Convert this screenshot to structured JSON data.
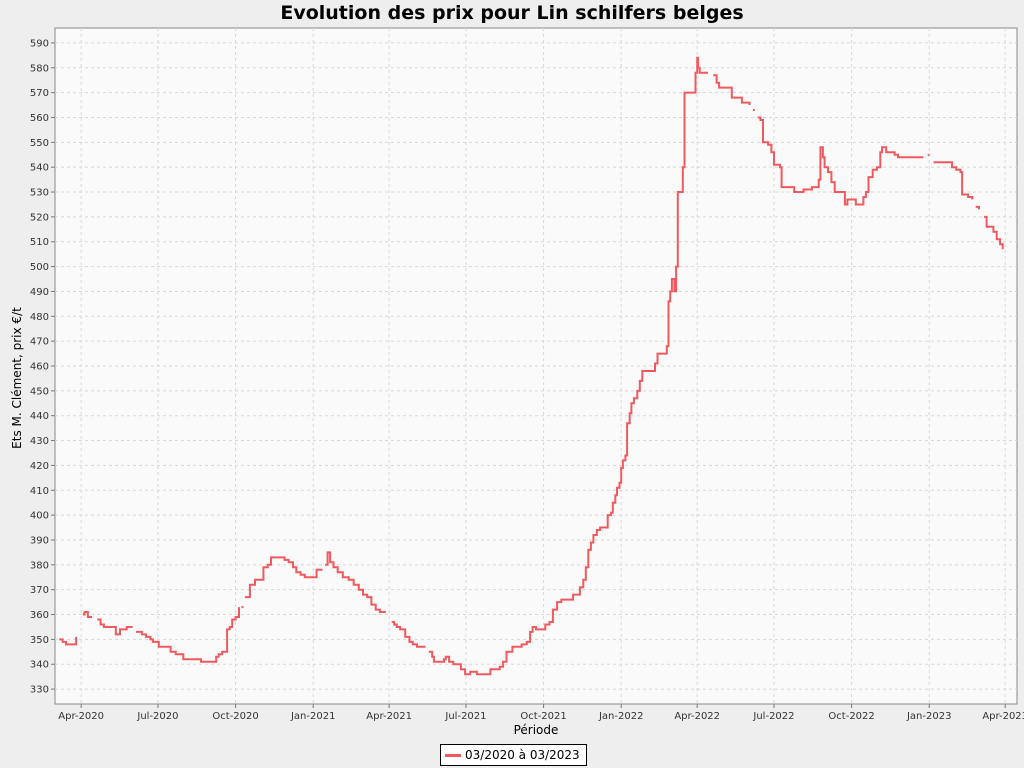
{
  "chart_data": {
    "type": "line",
    "title": "Evolution des prix pour Lin schilfers belges",
    "xlabel": "Période",
    "ylabel": "Ets M. Clément, prix €/t",
    "ylim": [
      324,
      596
    ],
    "yticks": [
      330,
      340,
      350,
      360,
      370,
      380,
      390,
      400,
      410,
      420,
      430,
      440,
      450,
      460,
      470,
      480,
      490,
      500,
      510,
      520,
      530,
      540,
      550,
      560,
      570,
      580,
      590
    ],
    "xlim": [
      "2020-03-01",
      "2023-04-15"
    ],
    "xticks": [
      {
        "date": "2020-04-01",
        "label": "Apr-2020"
      },
      {
        "date": "2020-07-01",
        "label": "Jul-2020"
      },
      {
        "date": "2020-10-01",
        "label": "Oct-2020"
      },
      {
        "date": "2021-01-01",
        "label": "Jan-2021"
      },
      {
        "date": "2021-04-01",
        "label": "Apr-2021"
      },
      {
        "date": "2021-07-01",
        "label": "Jul-2021"
      },
      {
        "date": "2021-10-01",
        "label": "Oct-2021"
      },
      {
        "date": "2022-01-01",
        "label": "Jan-2022"
      },
      {
        "date": "2022-04-01",
        "label": "Apr-2022"
      },
      {
        "date": "2022-07-01",
        "label": "Jul-2022"
      },
      {
        "date": "2022-10-01",
        "label": "Oct-2022"
      },
      {
        "date": "2023-01-01",
        "label": "Jan-2023"
      },
      {
        "date": "2023-04-01",
        "label": "Apr-2023"
      }
    ],
    "grid": true,
    "legend_placement": "bottom",
    "series": [
      {
        "name": "03/2020 à 03/2023",
        "color": "#f05a5f",
        "segments": [
          [
            [
              "2020-03-06",
              350
            ],
            [
              "2020-03-10",
              349
            ],
            [
              "2020-03-14",
              348
            ],
            [
              "2020-03-22",
              348
            ],
            [
              "2020-03-26",
              351
            ]
          ],
          [
            [
              "2020-04-03",
              360
            ],
            [
              "2020-04-05",
              361
            ],
            [
              "2020-04-09",
              359
            ],
            [
              "2020-04-14",
              359
            ]
          ],
          [
            [
              "2020-04-20",
              358
            ],
            [
              "2020-04-24",
              356
            ],
            [
              "2020-04-28",
              355
            ],
            [
              "2020-05-08",
              355
            ],
            [
              "2020-05-12",
              352
            ],
            [
              "2020-05-15",
              352
            ],
            [
              "2020-05-17",
              354
            ],
            [
              "2020-05-22",
              354
            ],
            [
              "2020-05-25",
              355
            ],
            [
              "2020-06-01",
              355
            ]
          ],
          [
            [
              "2020-06-05",
              353
            ],
            [
              "2020-06-12",
              352
            ],
            [
              "2020-06-17",
              351
            ],
            [
              "2020-06-22",
              350
            ],
            [
              "2020-06-25",
              349
            ],
            [
              "2020-06-30",
              349
            ],
            [
              "2020-07-02",
              347
            ],
            [
              "2020-07-10",
              347
            ],
            [
              "2020-07-16",
              345
            ],
            [
              "2020-07-22",
              344
            ],
            [
              "2020-07-28",
              344
            ],
            [
              "2020-07-31",
              342
            ],
            [
              "2020-08-10",
              342
            ],
            [
              "2020-08-17",
              342
            ],
            [
              "2020-08-21",
              341
            ],
            [
              "2020-09-04",
              341
            ],
            [
              "2020-09-08",
              343
            ],
            [
              "2020-09-11",
              344
            ],
            [
              "2020-09-15",
              345
            ],
            [
              "2020-09-19",
              345
            ],
            [
              "2020-09-21",
              354
            ],
            [
              "2020-09-24",
              355
            ],
            [
              "2020-09-27",
              358
            ],
            [
              "2020-10-01",
              359
            ],
            [
              "2020-10-05",
              363
            ]
          ],
          [
            [
              "2020-10-08",
              363
            ]
          ],
          [
            [
              "2020-10-12",
              367
            ],
            [
              "2020-10-16",
              367
            ],
            [
              "2020-10-18",
              372
            ],
            [
              "2020-10-24",
              374
            ],
            [
              "2020-10-31",
              374
            ],
            [
              "2020-11-03",
              379
            ],
            [
              "2020-11-08",
              380
            ],
            [
              "2020-11-12",
              383
            ],
            [
              "2020-11-23",
              383
            ],
            [
              "2020-11-28",
              382
            ],
            [
              "2020-12-03",
              381
            ],
            [
              "2020-12-08",
              379
            ],
            [
              "2020-12-12",
              377
            ],
            [
              "2020-12-17",
              376
            ],
            [
              "2020-12-22",
              375
            ],
            [
              "2021-01-02",
              375
            ],
            [
              "2021-01-05",
              378
            ],
            [
              "2021-01-12",
              378
            ]
          ],
          [
            [
              "2021-01-15",
              380
            ],
            [
              "2021-01-18",
              385
            ],
            [
              "2021-01-21",
              381
            ],
            [
              "2021-01-25",
              379
            ],
            [
              "2021-01-30",
              377
            ],
            [
              "2021-02-05",
              375
            ],
            [
              "2021-02-12",
              374
            ],
            [
              "2021-02-18",
              372
            ],
            [
              "2021-02-24",
              370
            ],
            [
              "2021-03-01",
              368
            ],
            [
              "2021-03-06",
              367
            ],
            [
              "2021-03-11",
              364
            ],
            [
              "2021-03-16",
              362
            ],
            [
              "2021-03-21",
              361
            ],
            [
              "2021-03-28",
              361
            ]
          ],
          [
            [
              "2021-04-04",
              357
            ],
            [
              "2021-04-07",
              356
            ],
            [
              "2021-04-10",
              355
            ],
            [
              "2021-04-14",
              354
            ],
            [
              "2021-04-20",
              351
            ],
            [
              "2021-04-25",
              349
            ],
            [
              "2021-04-29",
              348
            ],
            [
              "2021-05-04",
              347
            ],
            [
              "2021-05-14",
              347
            ]
          ],
          [
            [
              "2021-05-18",
              345
            ],
            [
              "2021-05-22",
              343
            ],
            [
              "2021-05-24",
              341
            ],
            [
              "2021-06-01",
              341
            ],
            [
              "2021-06-05",
              342
            ],
            [
              "2021-06-07",
              343
            ],
            [
              "2021-06-11",
              341
            ],
            [
              "2021-06-16",
              340
            ],
            [
              "2021-06-22",
              340
            ],
            [
              "2021-06-25",
              338
            ],
            [
              "2021-06-30",
              336
            ],
            [
              "2021-07-03",
              336
            ],
            [
              "2021-07-06",
              337
            ],
            [
              "2021-07-10",
              337
            ],
            [
              "2021-07-14",
              336
            ],
            [
              "2021-07-25",
              336
            ],
            [
              "2021-07-30",
              338
            ],
            [
              "2021-08-05",
              338
            ],
            [
              "2021-08-10",
              339
            ],
            [
              "2021-08-14",
              341
            ],
            [
              "2021-08-18",
              345
            ],
            [
              "2021-08-25",
              347
            ],
            [
              "2021-09-01",
              347
            ],
            [
              "2021-09-05",
              348
            ],
            [
              "2021-09-11",
              349
            ],
            [
              "2021-09-15",
              353
            ],
            [
              "2021-09-18",
              355
            ],
            [
              "2021-09-22",
              354
            ],
            [
              "2021-09-28",
              354
            ],
            [
              "2021-10-03",
              356
            ],
            [
              "2021-10-08",
              357
            ],
            [
              "2021-10-12",
              362
            ],
            [
              "2021-10-17",
              365
            ],
            [
              "2021-10-22",
              366
            ],
            [
              "2021-11-01",
              366
            ],
            [
              "2021-11-05",
              368
            ],
            [
              "2021-11-10",
              368
            ],
            [
              "2021-11-13",
              371
            ],
            [
              "2021-11-17",
              374
            ],
            [
              "2021-11-20",
              379
            ],
            [
              "2021-11-23",
              386
            ],
            [
              "2021-11-26",
              389
            ],
            [
              "2021-11-29",
              392
            ],
            [
              "2021-12-03",
              394
            ],
            [
              "2021-12-07",
              395
            ],
            [
              "2021-12-13",
              395
            ],
            [
              "2021-12-16",
              400
            ],
            [
              "2021-12-20",
              401
            ],
            [
              "2021-12-22",
              405
            ],
            [
              "2021-12-25",
              408
            ],
            [
              "2021-12-27",
              411
            ],
            [
              "2021-12-30",
              413
            ],
            [
              "2022-01-01",
              419
            ],
            [
              "2022-01-03",
              422
            ],
            [
              "2022-01-06",
              424
            ],
            [
              "2022-01-08",
              437
            ],
            [
              "2022-01-11",
              441
            ],
            [
              "2022-01-13",
              445
            ],
            [
              "2022-01-16",
              447
            ],
            [
              "2022-01-20",
              450
            ],
            [
              "2022-01-23",
              454
            ],
            [
              "2022-01-26",
              458
            ],
            [
              "2022-02-07",
              458
            ],
            [
              "2022-02-10",
              461
            ],
            [
              "2022-02-13",
              465
            ],
            [
              "2022-02-20",
              465
            ],
            [
              "2022-02-24",
              468
            ],
            [
              "2022-02-26",
              486
            ],
            [
              "2022-02-28",
              490
            ],
            [
              "2022-03-02",
              495
            ],
            [
              "2022-03-05",
              490
            ],
            [
              "2022-03-07",
              500
            ],
            [
              "2022-03-09",
              530
            ],
            [
              "2022-03-11",
              530
            ],
            [
              "2022-03-15",
              540
            ],
            [
              "2022-03-17",
              570
            ],
            [
              "2022-03-27",
              570
            ],
            [
              "2022-03-30",
              578
            ],
            [
              "2022-04-01",
              584
            ],
            [
              "2022-04-02",
              580
            ],
            [
              "2022-04-04",
              578
            ],
            [
              "2022-04-14",
              578
            ]
          ],
          [
            [
              "2022-04-20",
              577
            ],
            [
              "2022-04-24",
              574
            ],
            [
              "2022-04-27",
              572
            ],
            [
              "2022-05-10",
              572
            ],
            [
              "2022-05-12",
              568
            ],
            [
              "2022-05-20",
              568
            ],
            [
              "2022-05-24",
              566
            ],
            [
              "2022-06-02",
              565
            ]
          ],
          [
            [
              "2022-06-06",
              563
            ]
          ],
          [
            [
              "2022-06-12",
              560
            ],
            [
              "2022-06-15",
              559
            ],
            [
              "2022-06-18",
              550
            ],
            [
              "2022-06-24",
              549
            ],
            [
              "2022-06-28",
              546
            ],
            [
              "2022-07-01",
              541
            ],
            [
              "2022-07-08",
              540
            ],
            [
              "2022-07-10",
              532
            ],
            [
              "2022-07-21",
              532
            ],
            [
              "2022-07-25",
              530
            ],
            [
              "2022-08-01",
              530
            ],
            [
              "2022-08-05",
              531
            ],
            [
              "2022-08-11",
              531
            ],
            [
              "2022-08-15",
              532
            ],
            [
              "2022-08-19",
              532
            ],
            [
              "2022-08-23",
              535
            ],
            [
              "2022-08-25",
              548
            ],
            [
              "2022-08-28",
              544
            ],
            [
              "2022-08-30",
              540
            ],
            [
              "2022-09-03",
              538
            ],
            [
              "2022-09-07",
              534
            ],
            [
              "2022-09-11",
              530
            ],
            [
              "2022-09-21",
              530
            ],
            [
              "2022-09-23",
              525
            ],
            [
              "2022-09-26",
              527
            ],
            [
              "2022-10-03",
              527
            ],
            [
              "2022-10-06",
              525
            ],
            [
              "2022-10-11",
              525
            ],
            [
              "2022-10-15",
              528
            ],
            [
              "2022-10-18",
              530
            ],
            [
              "2022-10-21",
              536
            ],
            [
              "2022-10-26",
              539
            ],
            [
              "2022-10-31",
              540
            ],
            [
              "2022-11-04",
              546
            ],
            [
              "2022-11-06",
              548
            ],
            [
              "2022-11-11",
              546
            ],
            [
              "2022-11-21",
              545
            ],
            [
              "2022-11-25",
              544
            ],
            [
              "2022-12-25",
              544
            ]
          ],
          [
            [
              "2022-12-30",
              545
            ]
          ],
          [
            [
              "2023-01-06",
              542
            ],
            [
              "2023-01-13",
              542
            ],
            [
              "2023-01-21",
              542
            ],
            [
              "2023-01-28",
              540
            ],
            [
              "2023-02-02",
              539
            ],
            [
              "2023-02-07",
              538
            ],
            [
              "2023-02-09",
              529
            ],
            [
              "2023-02-16",
              528
            ],
            [
              "2023-02-21",
              527
            ]
          ],
          [
            [
              "2023-02-25",
              524
            ],
            [
              "2023-03-01",
              523
            ]
          ],
          [
            [
              "2023-03-07",
              520
            ],
            [
              "2023-03-10",
              516
            ],
            [
              "2023-03-15",
              516
            ],
            [
              "2023-03-18",
              514
            ],
            [
              "2023-03-22",
              511
            ],
            [
              "2023-03-26",
              509
            ],
            [
              "2023-03-29",
              507
            ]
          ]
        ]
      }
    ]
  }
}
